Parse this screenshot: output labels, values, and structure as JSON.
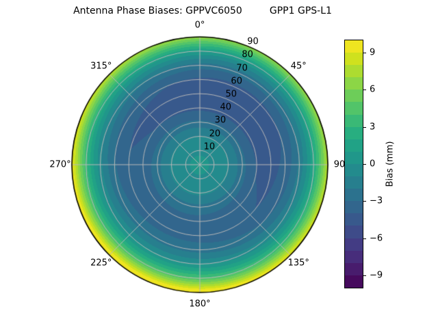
{
  "title": "Antenna Phase Biases: GPPVC6050         GPP1 GPS-L1",
  "chart_data": {
    "type": "heatmap",
    "projection": "polar",
    "title": "Antenna Phase Biases: GPPVC6050         GPP1 GPS-L1",
    "colormap": "viridis",
    "levels_mm": {
      "min": -10,
      "max": 10,
      "step": 1
    },
    "azimuth_ticks": [
      {
        "angle": 0,
        "label": "0°"
      },
      {
        "angle": 45,
        "label": "45°"
      },
      {
        "angle": 90,
        "label": "90"
      },
      {
        "angle": 135,
        "label": "135°"
      },
      {
        "angle": 180,
        "label": "180°"
      },
      {
        "angle": 225,
        "label": "225°"
      },
      {
        "angle": 270,
        "label": "270°"
      },
      {
        "angle": 315,
        "label": "315°"
      }
    ],
    "radial_ticks": [
      {
        "r": 10,
        "label": "10"
      },
      {
        "r": 20,
        "label": "20"
      },
      {
        "r": 30,
        "label": "30"
      },
      {
        "r": 40,
        "label": "40"
      },
      {
        "r": 50,
        "label": "50"
      },
      {
        "r": 60,
        "label": "60"
      },
      {
        "r": 70,
        "label": "70"
      },
      {
        "r": 80,
        "label": "80"
      },
      {
        "r": 90,
        "label": "90"
      }
    ],
    "radial_tick_angle_deg": 22.5,
    "radial_max": 90,
    "grid_color": "#b8b8b8",
    "radial_profile": {
      "zenith": [
        0,
        10,
        20,
        25,
        30,
        40,
        50,
        60,
        65,
        70,
        75,
        80,
        85,
        90
      ],
      "bias_mm": [
        0.2,
        -0.1,
        -0.9,
        -1.6,
        -2.6,
        -3.9,
        -4.15,
        -3.3,
        -2.4,
        -1.2,
        0.5,
        2.7,
        5.6,
        8.8
      ]
    },
    "azimuthal_variation": {
      "amplitude_mm": 2.2,
      "phase_deg": 205,
      "radial_power": 2
    },
    "colorbar": {
      "label": "Bias (mm)",
      "range": [
        -10,
        10
      ],
      "n_bands": 20,
      "ticks": [
        {
          "value": 9,
          "label": "9"
        },
        {
          "value": 6,
          "label": "6"
        },
        {
          "value": 3,
          "label": "3"
        },
        {
          "value": 0,
          "label": "0"
        },
        {
          "value": -3,
          "label": "−3"
        },
        {
          "value": -6,
          "label": "−6"
        },
        {
          "value": -9,
          "label": "−9"
        }
      ]
    },
    "viridis_stops": [
      {
        "t": 0.0,
        "color": "#440154"
      },
      {
        "t": 0.0625,
        "color": "#48186a"
      },
      {
        "t": 0.125,
        "color": "#472d7b"
      },
      {
        "t": 0.1875,
        "color": "#424086"
      },
      {
        "t": 0.25,
        "color": "#3b528b"
      },
      {
        "t": 0.3125,
        "color": "#33638d"
      },
      {
        "t": 0.375,
        "color": "#2c728e"
      },
      {
        "t": 0.4375,
        "color": "#26828e"
      },
      {
        "t": 0.5,
        "color": "#21918c"
      },
      {
        "t": 0.5625,
        "color": "#1f9f88"
      },
      {
        "t": 0.625,
        "color": "#28ae80"
      },
      {
        "t": 0.6875,
        "color": "#3fbc73"
      },
      {
        "t": 0.75,
        "color": "#5ec962"
      },
      {
        "t": 0.8125,
        "color": "#84d44b"
      },
      {
        "t": 0.875,
        "color": "#addc30"
      },
      {
        "t": 0.9375,
        "color": "#d8e219"
      },
      {
        "t": 1.0,
        "color": "#fde725"
      }
    ]
  }
}
